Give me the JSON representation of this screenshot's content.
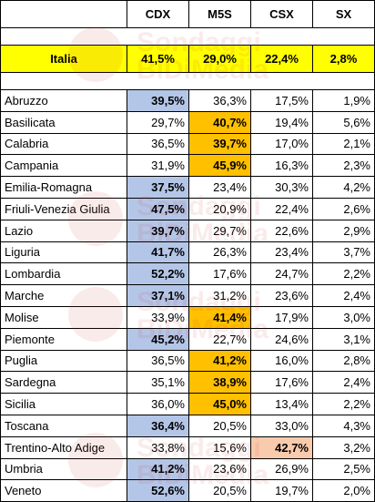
{
  "header": {
    "col0": "",
    "cols": [
      "CDX",
      "M5S",
      "CSX",
      "SX"
    ]
  },
  "national": {
    "label": "Italia",
    "values": [
      "41,5%",
      "29,0%",
      "22,4%",
      "2,8%"
    ]
  },
  "watermark": {
    "line1": "Sondaggi",
    "line2": "BiDiMedia"
  },
  "colors": {
    "national_row": "#ffff00",
    "cdx_highlight": "#b4c6e7",
    "m5s_highlight": "#ffc000",
    "csx_highlight": "#f8cbad"
  },
  "regions": [
    {
      "name": "Abruzzo",
      "values": [
        "39,5%",
        "36,3%",
        "17,5%",
        "1,9%"
      ],
      "leader": "CDX"
    },
    {
      "name": "Basilicata",
      "values": [
        "29,7%",
        "40,7%",
        "19,4%",
        "5,6%"
      ],
      "leader": "M5S"
    },
    {
      "name": "Calabria",
      "values": [
        "36,5%",
        "39,7%",
        "17,0%",
        "2,1%"
      ],
      "leader": "M5S"
    },
    {
      "name": "Campania",
      "values": [
        "31,9%",
        "45,9%",
        "16,3%",
        "2,3%"
      ],
      "leader": "M5S"
    },
    {
      "name": "Emilia-Romagna",
      "values": [
        "37,5%",
        "23,4%",
        "30,3%",
        "4,2%"
      ],
      "leader": "CDX"
    },
    {
      "name": "Friuli-Venezia Giulia",
      "values": [
        "47,5%",
        "20,9%",
        "22,4%",
        "2,6%"
      ],
      "leader": "CDX"
    },
    {
      "name": "Lazio",
      "values": [
        "39,7%",
        "29,7%",
        "22,6%",
        "2,9%"
      ],
      "leader": "CDX"
    },
    {
      "name": "Liguria",
      "values": [
        "41,7%",
        "26,3%",
        "23,4%",
        "3,7%"
      ],
      "leader": "CDX"
    },
    {
      "name": "Lombardia",
      "values": [
        "52,2%",
        "17,6%",
        "24,7%",
        "2,2%"
      ],
      "leader": "CDX"
    },
    {
      "name": "Marche",
      "values": [
        "37,1%",
        "31,2%",
        "23,6%",
        "2,4%"
      ],
      "leader": "CDX"
    },
    {
      "name": "Molise",
      "values": [
        "33,9%",
        "41,4%",
        "17,9%",
        "3,0%"
      ],
      "leader": "M5S"
    },
    {
      "name": "Piemonte",
      "values": [
        "45,2%",
        "22,7%",
        "24,6%",
        "3,1%"
      ],
      "leader": "CDX"
    },
    {
      "name": "Puglia",
      "values": [
        "36,5%",
        "41,2%",
        "16,0%",
        "2,8%"
      ],
      "leader": "M5S"
    },
    {
      "name": "Sardegna",
      "values": [
        "35,1%",
        "38,9%",
        "17,6%",
        "2,4%"
      ],
      "leader": "M5S"
    },
    {
      "name": "Sicilia",
      "values": [
        "36,0%",
        "45,0%",
        "13,4%",
        "2,2%"
      ],
      "leader": "M5S"
    },
    {
      "name": "Toscana",
      "values": [
        "36,4%",
        "20,5%",
        "33,0%",
        "4,3%"
      ],
      "leader": "CDX"
    },
    {
      "name": "Trentino-Alto Adige",
      "values": [
        "33,8%",
        "15,6%",
        "42,7%",
        "3,2%"
      ],
      "leader": "CSX"
    },
    {
      "name": "Umbria",
      "values": [
        "41,2%",
        "23,6%",
        "26,9%",
        "2,5%"
      ],
      "leader": "CDX"
    },
    {
      "name": "Veneto",
      "values": [
        "52,6%",
        "20,5%",
        "19,7%",
        "2,0%"
      ],
      "leader": "CDX"
    }
  ]
}
